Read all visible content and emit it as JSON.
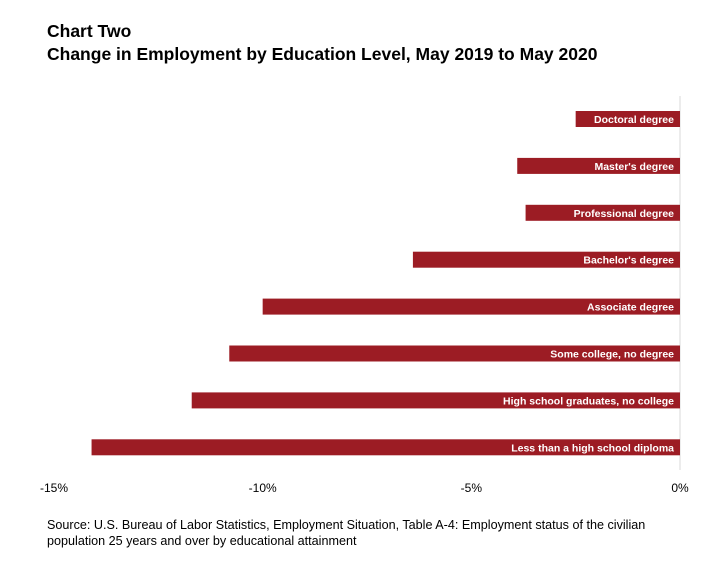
{
  "title_lines": [
    "Chart Two",
    "Change in Employment by Education Level, May 2019 to May 2020"
  ],
  "source_note": "Source: U.S. Bureau of Labor Statistics, Employment Situation, Table A-4: Employment status of the civilian population 25 years and over by educational attainment",
  "colors": {
    "bar": "#9c1c24",
    "axis": "#d9d9d9"
  },
  "chart_data": {
    "type": "bar",
    "orientation": "horizontal",
    "title": "Change in Employment by Education Level, May 2019 to May 2020",
    "subtitle": "Chart Two",
    "categories": [
      "Doctoral degree",
      "Master's degree",
      "Professional degree",
      "Bachelor's degree",
      "Associate degree",
      "Some college, no degree",
      "High school graduates, no college",
      "Less than a high school diploma"
    ],
    "values": [
      -2.5,
      -3.9,
      -3.7,
      -6.4,
      -10.0,
      -10.8,
      -11.7,
      -14.1
    ],
    "x_ticks": [
      -15,
      -10,
      -5,
      0
    ],
    "x_tick_labels": [
      "-15%",
      "-10%",
      "-5%",
      "0%"
    ],
    "xlim": [
      -15,
      0
    ],
    "xlabel": "",
    "ylabel": "",
    "grid": false,
    "legend": "none",
    "category_labels_position": "inside-bar-end"
  }
}
